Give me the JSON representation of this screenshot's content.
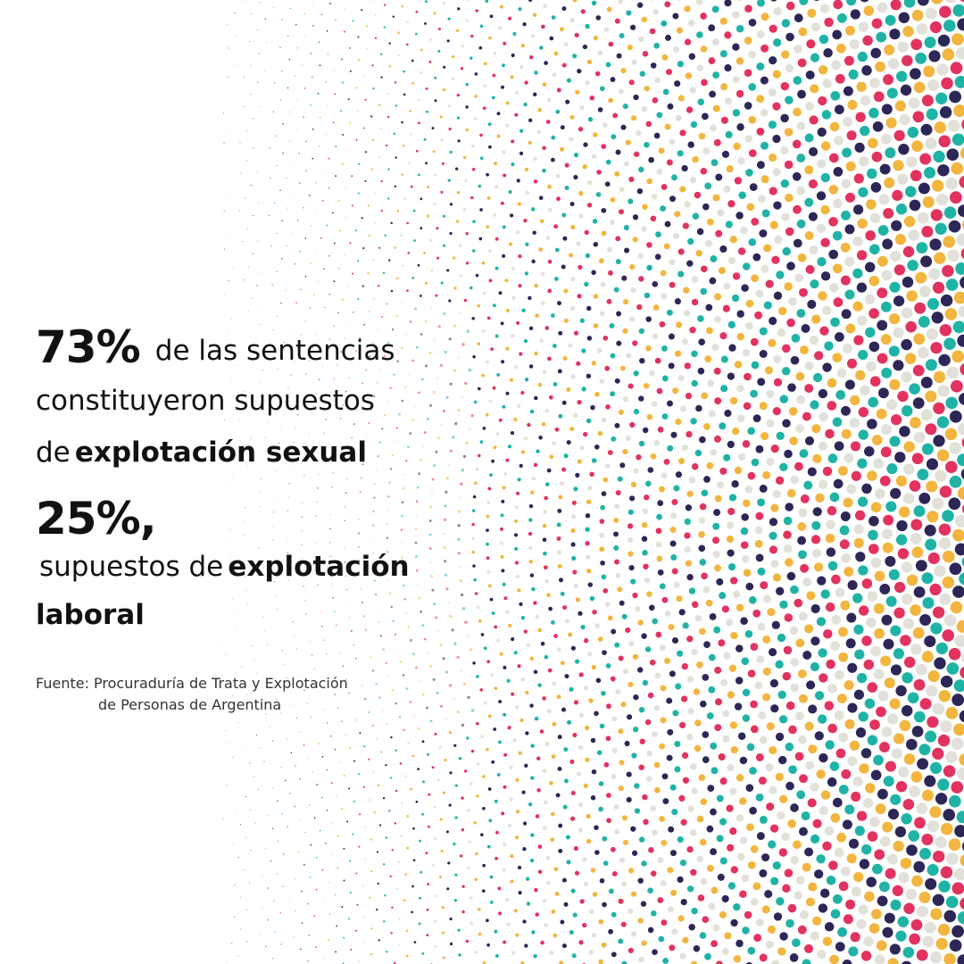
{
  "palette": {
    "navy": "#2c2756",
    "red": "#e2325f",
    "yellow": "#f2b53e",
    "teal": "#1fb3a6",
    "grey": "#e1e1da",
    "text": "#111111"
  },
  "stat1": {
    "percent": "73%",
    "line1": "de las sentencias",
    "line2": "constituyeron supuestos",
    "line3_prefix": "de",
    "line3_bold": "explotación sexual"
  },
  "stat2": {
    "percent": "25%,",
    "line1_prefix": "supuestos de",
    "line1_bold": "explotación",
    "line2_bold": "laboral"
  },
  "source": {
    "line1": "Fuente: Procuraduría de Trata y Explotación",
    "line2": "de Personas de Argentina"
  }
}
